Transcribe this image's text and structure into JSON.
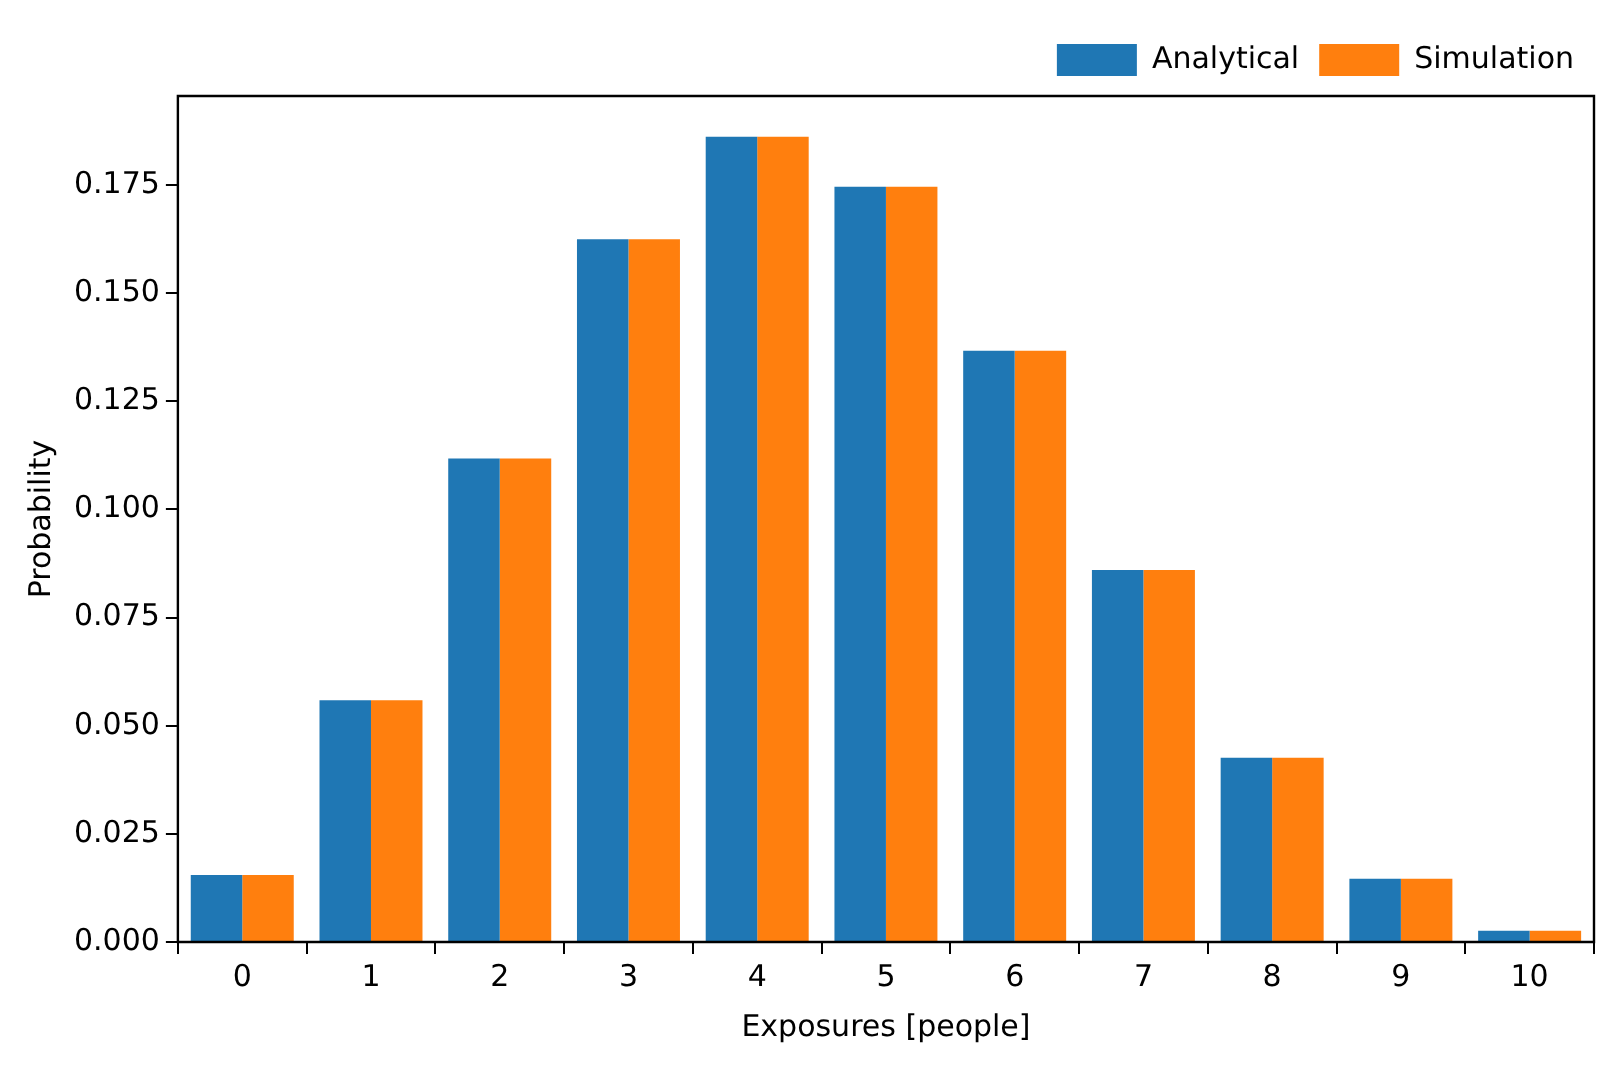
{
  "chart_data": {
    "type": "bar",
    "xlabel": "Exposures [people]",
    "ylabel": "Probability",
    "categories": [
      "0",
      "1",
      "2",
      "3",
      "4",
      "5",
      "6",
      "7",
      "8",
      "9",
      "10"
    ],
    "series": [
      {
        "name": "Analytical",
        "color": "#1f77b4",
        "values": [
          0.0155,
          0.0559,
          0.1118,
          0.1625,
          0.1862,
          0.1746,
          0.1367,
          0.086,
          0.0426,
          0.0146,
          0.0026
        ]
      },
      {
        "name": "Simulation",
        "color": "#ff7f0e",
        "values": [
          0.0155,
          0.0559,
          0.1118,
          0.1625,
          0.1862,
          0.1746,
          0.1367,
          0.086,
          0.0426,
          0.0146,
          0.0026
        ]
      }
    ],
    "ylim": [
      0,
      0.1956
    ],
    "yticks": [
      {
        "value": 0,
        "label": "0.000"
      },
      {
        "value": 0.025,
        "label": "0.025"
      },
      {
        "value": 0.05,
        "label": "0.050"
      },
      {
        "value": 0.075,
        "label": "0.075"
      },
      {
        "value": 0.1,
        "label": "0.100"
      },
      {
        "value": 0.125,
        "label": "0.125"
      },
      {
        "value": 0.15,
        "label": "0.150"
      },
      {
        "value": 0.175,
        "label": "0.175"
      }
    ],
    "grid": false,
    "legend": "top right"
  }
}
